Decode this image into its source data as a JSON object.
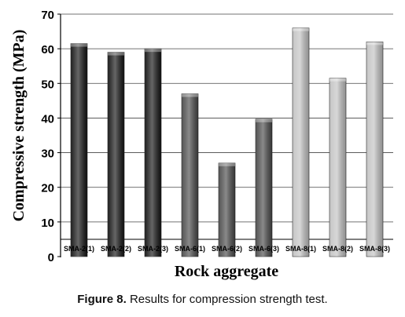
{
  "chart_data": {
    "type": "bar",
    "xlabel": "Rock aggregate",
    "ylabel": "Compressive strength (MPa)",
    "ylim": [
      0,
      70
    ],
    "yticks": [
      0,
      10,
      20,
      30,
      40,
      50,
      60,
      70
    ],
    "grid": true,
    "categories": [
      "SMA-2(1)",
      "SMA-2(2)",
      "SMA-2(3)",
      "SMA-6(1)",
      "SMA-6(2)",
      "SMA-6(3)",
      "SMA-8(1)",
      "SMA-8(2)",
      "SMA-8(3)"
    ],
    "values": [
      61.5,
      59,
      60,
      47,
      27,
      39.7,
      66,
      51.5,
      62
    ],
    "colors": [
      "#141414",
      "#141414",
      "#141414",
      "#4a4a4a",
      "#4a4a4a",
      "#4a4a4a",
      "#c2c2c2",
      "#c2c2c2",
      "#c2c2c2"
    ]
  },
  "caption": {
    "label": "Figure 8.",
    "text": "Results for compression strength test."
  }
}
